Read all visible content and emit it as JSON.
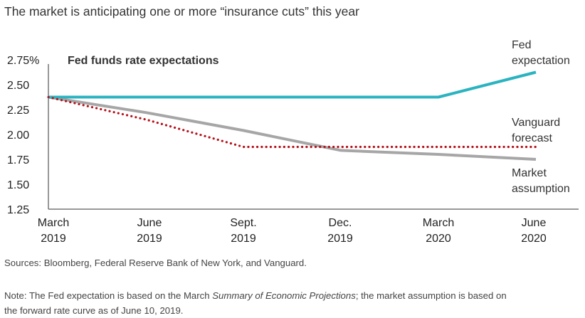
{
  "header": {
    "title": "The market is anticipating one or more “insurance cuts” this year"
  },
  "chart_data": {
    "type": "line",
    "title": "Fed funds rate expectations",
    "xlabel": "",
    "ylabel": "",
    "x": [
      "March 2019",
      "June 2019",
      "Sept. 2019",
      "Dec. 2019",
      "March 2020",
      "June 2020"
    ],
    "x_tick_labels": [
      [
        "March",
        "2019"
      ],
      [
        "June",
        "2019"
      ],
      [
        "Sept.",
        "2019"
      ],
      [
        "Dec.",
        "2019"
      ],
      [
        "March",
        "2020"
      ],
      [
        "June",
        "2020"
      ]
    ],
    "y_ticks": [
      1.25,
      1.5,
      1.75,
      2.0,
      2.25,
      2.5,
      2.75
    ],
    "y_tick_labels": [
      "1.25",
      "1.50",
      "1.75",
      "2.00",
      "2.25",
      "2.50",
      "2.75%"
    ],
    "ylim": [
      1.25,
      2.75
    ],
    "grid": false,
    "legend": "direct labels at right end of each line",
    "series": [
      {
        "name": "Fed expectation",
        "label_lines": [
          "Fed",
          "expectation"
        ],
        "color": "#2bb3c0",
        "style": "solid",
        "values": [
          2.375,
          2.375,
          2.375,
          2.375,
          2.375,
          2.625
        ]
      },
      {
        "name": "Vanguard forecast",
        "label_lines": [
          "Vanguard",
          "forecast"
        ],
        "color": "#b5121b",
        "style": "dotted",
        "values": [
          2.375,
          2.15,
          1.875,
          1.875,
          1.875,
          1.875
        ]
      },
      {
        "name": "Market assumption",
        "label_lines": [
          "Market",
          "assumption"
        ],
        "color": "#a6a6a6",
        "style": "solid",
        "values": [
          2.375,
          2.22,
          2.04,
          1.84,
          1.8,
          1.75
        ]
      }
    ]
  },
  "footer": {
    "sources": "Sources: Bloomberg, Federal Reserve Bank of New York, and Vanguard.",
    "note_prefix": "Note: The Fed expectation is based on the March ",
    "note_italic": "Summary of Economic Projections",
    "note_suffix": "; the market assumption is based on",
    "note_line2": "the forward rate curve as of June 10, 2019."
  }
}
